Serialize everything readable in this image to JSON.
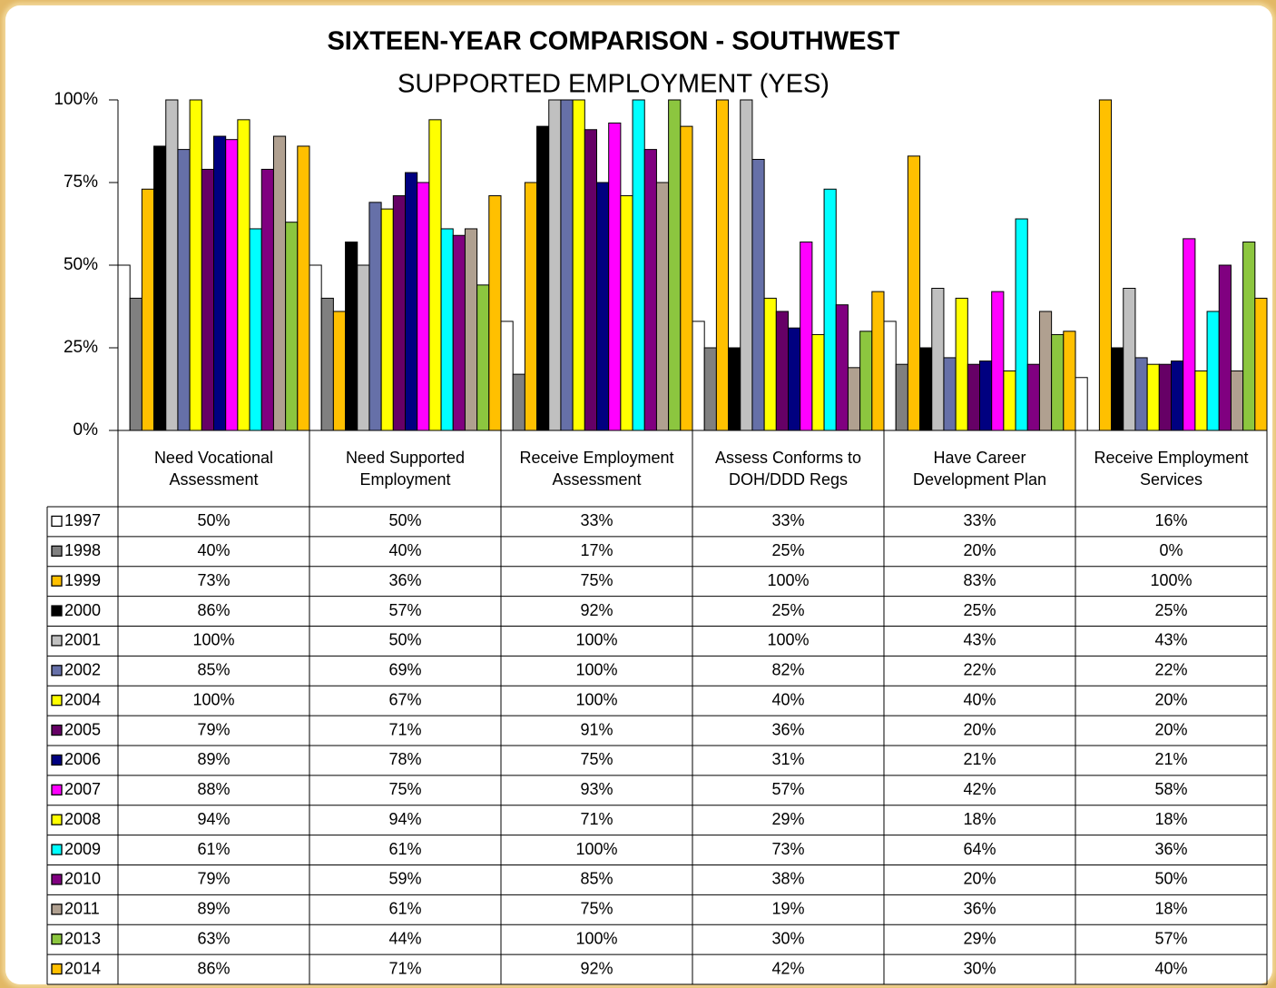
{
  "chart_data": {
    "type": "bar",
    "title": "SIXTEEN-YEAR COMPARISON - SOUTHWEST",
    "subtitle": "SUPPORTED EMPLOYMENT (YES)",
    "categories": [
      "Need Vocational Assessment",
      "Need Supported Employment",
      "Receive Employment Assessment",
      "Assess Conforms to DOH/DDD Regs",
      "Have Career Development Plan",
      "Receive Employment Services"
    ],
    "ylim": [
      0,
      100
    ],
    "yticks": [
      {
        "value": 0,
        "label": "0%"
      },
      {
        "value": 25,
        "label": "25%"
      },
      {
        "value": 50,
        "label": "50%"
      },
      {
        "value": 75,
        "label": "75%"
      },
      {
        "value": 100,
        "label": "100%"
      }
    ],
    "grid": false,
    "series": [
      {
        "name": "1997",
        "color": "#ffffff",
        "values": [
          50,
          50,
          33,
          33,
          33,
          16
        ],
        "value_labels": [
          "50%",
          "50%",
          "33%",
          "33%",
          "33%",
          "16%"
        ]
      },
      {
        "name": "1998",
        "color": "#808080",
        "values": [
          40,
          40,
          17,
          25,
          20,
          0
        ],
        "value_labels": [
          "40%",
          "40%",
          "17%",
          "25%",
          "20%",
          "0%"
        ]
      },
      {
        "name": "1999",
        "color": "#ffc000",
        "values": [
          73,
          36,
          75,
          100,
          83,
          100
        ],
        "value_labels": [
          "73%",
          "36%",
          "75%",
          "100%",
          "83%",
          "100%"
        ]
      },
      {
        "name": "2000",
        "color": "#000000",
        "values": [
          86,
          57,
          92,
          25,
          25,
          25
        ],
        "value_labels": [
          "86%",
          "57%",
          "92%",
          "25%",
          "25%",
          "25%"
        ]
      },
      {
        "name": "2001",
        "color": "#c0c0c0",
        "values": [
          100,
          50,
          100,
          100,
          43,
          43
        ],
        "value_labels": [
          "100%",
          "50%",
          "100%",
          "100%",
          "43%",
          "43%"
        ]
      },
      {
        "name": "2002",
        "color": "#6670a8",
        "values": [
          85,
          69,
          100,
          82,
          22,
          22
        ],
        "value_labels": [
          "85%",
          "69%",
          "100%",
          "82%",
          "22%",
          "22%"
        ]
      },
      {
        "name": "2004",
        "color": "#ffff00",
        "values": [
          100,
          67,
          100,
          40,
          40,
          20
        ],
        "value_labels": [
          "100%",
          "67%",
          "100%",
          "40%",
          "40%",
          "20%"
        ]
      },
      {
        "name": "2005",
        "color": "#660066",
        "values": [
          79,
          71,
          91,
          36,
          20,
          20
        ],
        "value_labels": [
          "79%",
          "71%",
          "91%",
          "36%",
          "20%",
          "20%"
        ]
      },
      {
        "name": "2006",
        "color": "#000080",
        "values": [
          89,
          78,
          75,
          31,
          21,
          21
        ],
        "value_labels": [
          "89%",
          "78%",
          "75%",
          "31%",
          "21%",
          "21%"
        ]
      },
      {
        "name": "2007",
        "color": "#ff00ff",
        "values": [
          88,
          75,
          93,
          57,
          42,
          58
        ],
        "value_labels": [
          "88%",
          "75%",
          "93%",
          "57%",
          "42%",
          "58%"
        ]
      },
      {
        "name": "2008",
        "color": "#ffff00",
        "values": [
          94,
          94,
          71,
          29,
          18,
          18
        ],
        "value_labels": [
          "94%",
          "94%",
          "71%",
          "29%",
          "18%",
          "18%"
        ]
      },
      {
        "name": "2009",
        "color": "#00ffff",
        "values": [
          61,
          61,
          100,
          73,
          64,
          36
        ],
        "value_labels": [
          "61%",
          "61%",
          "100%",
          "73%",
          "64%",
          "36%"
        ]
      },
      {
        "name": "2010",
        "color": "#800080",
        "values": [
          79,
          59,
          85,
          38,
          20,
          50
        ],
        "value_labels": [
          "79%",
          "59%",
          "85%",
          "38%",
          "20%",
          "50%"
        ]
      },
      {
        "name": "2011",
        "color": "#b0a090",
        "values": [
          89,
          61,
          75,
          19,
          36,
          18
        ],
        "value_labels": [
          "89%",
          "61%",
          "75%",
          "19%",
          "36%",
          "18%"
        ]
      },
      {
        "name": "2013",
        "color": "#8cc63f",
        "values": [
          63,
          44,
          100,
          30,
          29,
          57
        ],
        "value_labels": [
          "63%",
          "44%",
          "100%",
          "30%",
          "29%",
          "57%"
        ]
      },
      {
        "name": "2014",
        "color": "#ffc000",
        "values": [
          86,
          71,
          92,
          42,
          30,
          40
        ],
        "value_labels": [
          "86%",
          "71%",
          "92%",
          "42%",
          "30%",
          "40%"
        ]
      }
    ]
  }
}
